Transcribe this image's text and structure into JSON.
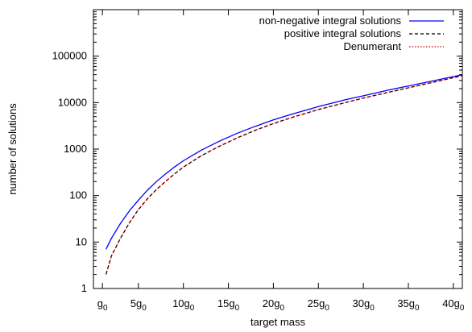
{
  "chart_data": {
    "type": "line",
    "xlabel": "target mass",
    "ylabel": "number of solutions",
    "x_unit_symbol": "g",
    "x_unit_subscript": "0",
    "xlim": [
      0,
      41
    ],
    "ylim": [
      1,
      1000000
    ],
    "yscale": "log",
    "grid": false,
    "legend_position": "top-right",
    "xticks": [
      {
        "value": 1,
        "prefix": ""
      },
      {
        "value": 5,
        "prefix": "5"
      },
      {
        "value": 10,
        "prefix": "10"
      },
      {
        "value": 15,
        "prefix": "15"
      },
      {
        "value": 20,
        "prefix": "20"
      },
      {
        "value": 25,
        "prefix": "25"
      },
      {
        "value": 30,
        "prefix": "30"
      },
      {
        "value": 35,
        "prefix": "35"
      },
      {
        "value": 40,
        "prefix": "40"
      }
    ],
    "yticks": [
      {
        "value": 1,
        "label": "1"
      },
      {
        "value": 10,
        "label": "10"
      },
      {
        "value": 100,
        "label": "100"
      },
      {
        "value": 1000,
        "label": "1000"
      },
      {
        "value": 10000,
        "label": "10000"
      },
      {
        "value": 100000,
        "label": "100000"
      }
    ],
    "x": [
      1.4,
      2,
      3,
      4,
      5,
      6,
      7,
      8,
      9,
      10,
      12,
      14,
      16,
      18,
      20,
      22,
      25,
      28,
      30,
      33,
      36,
      38,
      41
    ],
    "series": [
      {
        "name": "non-negative integral solutions",
        "color": "#0000ff",
        "dash": "solid",
        "values": [
          7,
          12,
          25,
          47,
          80,
          130,
          200,
          290,
          410,
          560,
          950,
          1480,
          2200,
          3100,
          4250,
          5600,
          8200,
          11500,
          14000,
          19000,
          25000,
          30000,
          40000
        ]
      },
      {
        "name": "positive integral solutions",
        "color": "#000000",
        "dash": "dashed",
        "values": [
          2,
          5,
          12,
          26,
          50,
          85,
          135,
          200,
          290,
          410,
          720,
          1150,
          1750,
          2550,
          3550,
          4750,
          7100,
          10000,
          12500,
          17000,
          23000,
          28000,
          38000
        ]
      },
      {
        "name": "Denumerant",
        "color": "#cc0000",
        "dash": "dotted",
        "values": [
          2,
          5,
          12,
          26,
          50,
          85,
          135,
          200,
          290,
          410,
          720,
          1150,
          1750,
          2550,
          3550,
          4750,
          7100,
          10000,
          12500,
          17000,
          23000,
          28000,
          38000
        ]
      }
    ]
  }
}
